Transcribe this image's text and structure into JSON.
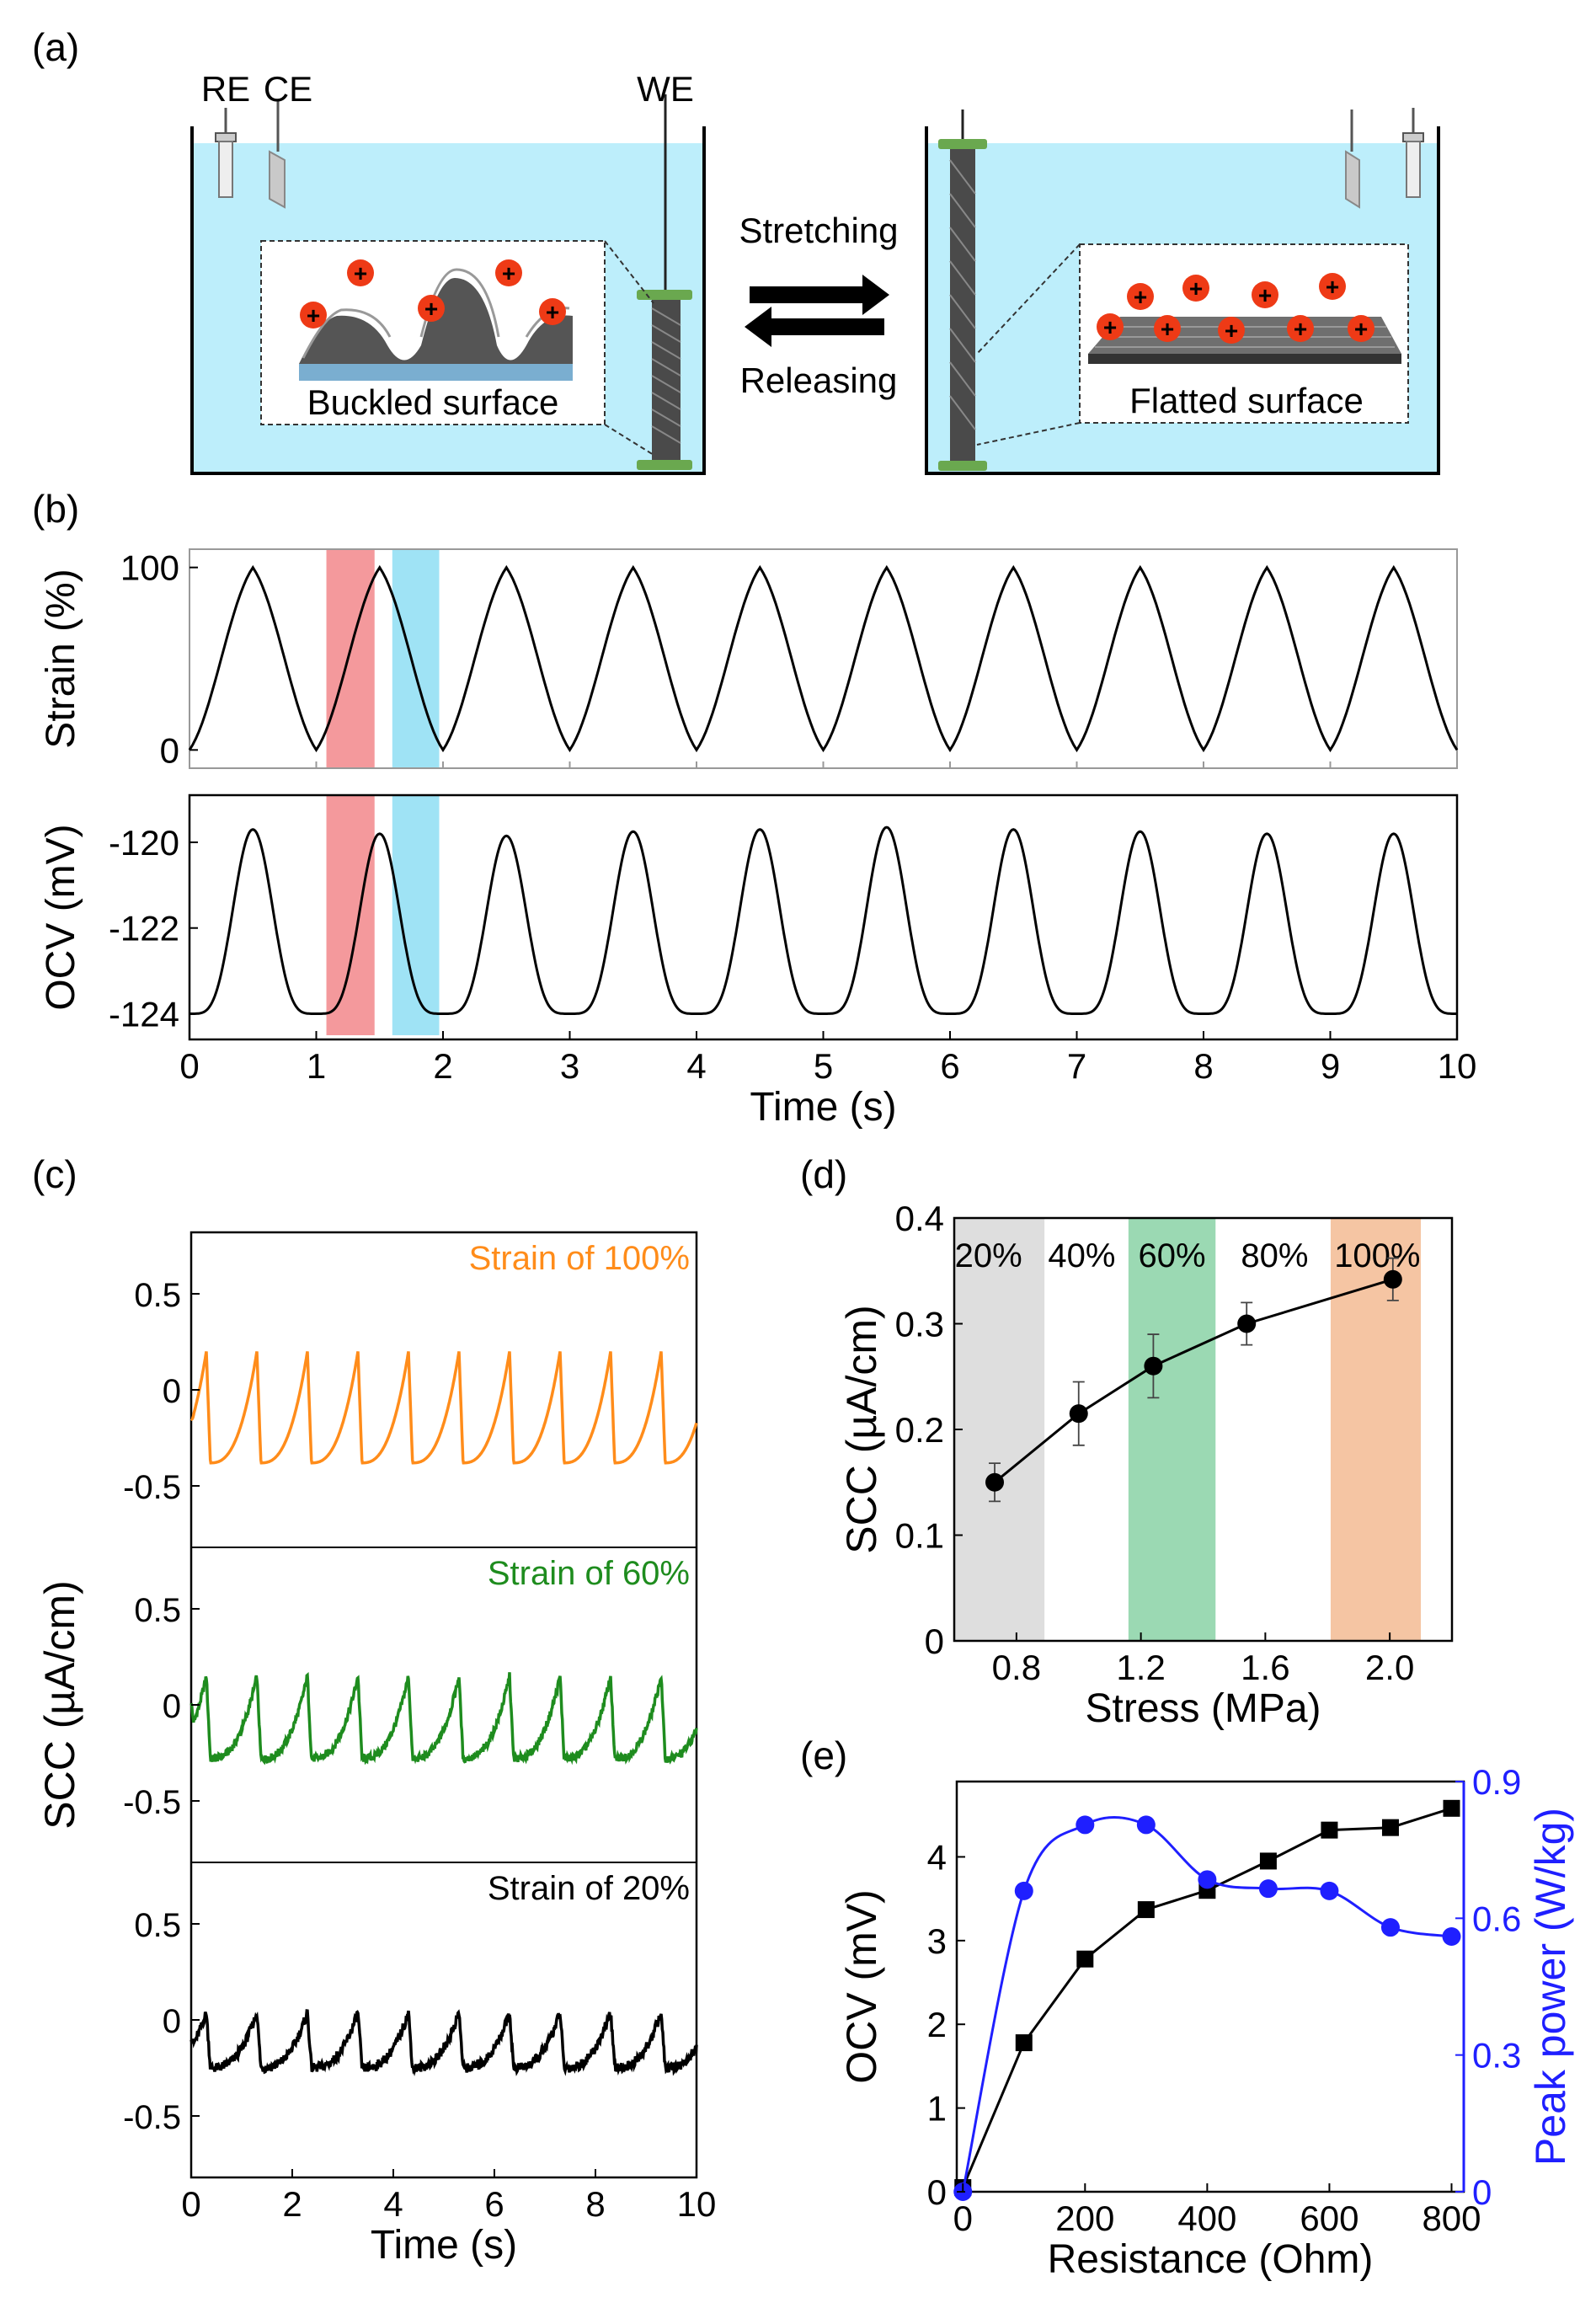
{
  "panel_labels": {
    "a": "(a)",
    "b": "(b)",
    "c": "(c)",
    "d": "(d)",
    "e": "(e)"
  },
  "schematic": {
    "electrodes": {
      "re": "RE",
      "ce": "CE",
      "we": "WE"
    },
    "arrows": {
      "stretch": "Stretching",
      "release": "Releasing"
    },
    "left_inset": "Buckled surface",
    "right_inset": "Flatted surface",
    "charge_symbol": "+",
    "colors": {
      "water": "#bdeefb",
      "yarn": "#4a4a4a",
      "cap": "#6aa84f",
      "charge": "#ee3a16"
    }
  },
  "colors": {
    "axis": "#000000",
    "red_band": "#f4999c",
    "blue_band": "#9fe3f5",
    "c100": "#ff8c1a",
    "c60": "#1e8c1e",
    "c20": "#000000",
    "band20": "#dedede",
    "band60": "#9bd9b3",
    "band100": "#f5c5a3",
    "ocv_e": "#000000",
    "power_e": "#1f1fff"
  },
  "chart_data": [
    {
      "id": "b-strain",
      "type": "line",
      "ylabel": "Strain (%)",
      "ylim": [
        -10,
        110
      ],
      "yticks": [
        0,
        100
      ],
      "xlim": [
        0,
        10
      ],
      "x": [
        0,
        0.5,
        1,
        1.5,
        2,
        2.5,
        3,
        3.5,
        4,
        4.5,
        5,
        5.5,
        6,
        6.5,
        7,
        7.5,
        8,
        8.5,
        9,
        9.5,
        10
      ],
      "y": [
        0,
        100,
        0,
        100,
        0,
        100,
        0,
        100,
        0,
        100,
        0,
        100,
        0,
        100,
        0,
        100,
        0,
        100,
        0,
        100,
        0
      ],
      "highlight_bands": [
        {
          "from": 1.08,
          "to": 1.46,
          "color": "red"
        },
        {
          "from": 1.6,
          "to": 1.97,
          "color": "blue"
        }
      ]
    },
    {
      "id": "b-ocv",
      "type": "line",
      "ylabel": "OCV (mV)",
      "xlabel": "Time (s)",
      "xlim": [
        0,
        10
      ],
      "xticks": [
        0,
        1,
        2,
        3,
        4,
        5,
        6,
        7,
        8,
        9,
        10
      ],
      "ylim": [
        -124.6,
        -118.9
      ],
      "yticks": [
        -120,
        -122,
        -124
      ],
      "ytick_labels": [
        "-120",
        "-122",
        "-124"
      ],
      "baseline": -124.0,
      "period": 1.0,
      "peak_times": [
        0.5,
        1.5,
        2.5,
        3.5,
        4.5,
        5.5,
        6.5,
        7.5,
        8.5,
        9.5
      ],
      "peak_values": [
        -119.7,
        -119.8,
        -119.85,
        -119.75,
        -119.7,
        -119.65,
        -119.7,
        -119.75,
        -119.8,
        -119.8
      ],
      "highlight_bands": [
        {
          "from": 1.08,
          "to": 1.46,
          "color": "red"
        },
        {
          "from": 1.6,
          "to": 1.97,
          "color": "blue"
        }
      ]
    },
    {
      "id": "c-scc",
      "type": "line",
      "ylabel": "SCC (µA/cm)",
      "xlabel": "Time (s)",
      "xlim": [
        0,
        10
      ],
      "xticks": [
        0,
        2,
        4,
        6,
        8,
        10
      ],
      "ylim": [
        -0.82,
        0.82
      ],
      "yticks": [
        0.5,
        0,
        -0.5
      ],
      "ytick_labels": [
        "0.5",
        "0",
        "-0.5"
      ],
      "series": [
        {
          "name": "Strain of 100%",
          "cycles": 10,
          "peak": 0.2,
          "trough": -0.38,
          "start": -0.15,
          "noise": 0.0
        },
        {
          "name": "Strain of 60%",
          "cycles": 10,
          "peak": 0.15,
          "trough": -0.28,
          "start": 0.02,
          "noise": 0.02
        },
        {
          "name": "Strain of 20%",
          "cycles": 10,
          "peak": 0.04,
          "trough": -0.25,
          "start": -0.08,
          "noise": 0.025
        }
      ]
    },
    {
      "id": "d-scc-stress",
      "type": "scatter",
      "xlabel": "Stress (MPa)",
      "ylabel": "SCC (µA/cm)",
      "xlim": [
        0.6,
        2.2
      ],
      "ylim": [
        0,
        0.4
      ],
      "xticks": [
        0.8,
        1.2,
        1.6,
        2.0
      ],
      "xtick_labels": [
        "0.8",
        "1.2",
        "1.6",
        "2.0"
      ],
      "yticks": [
        0,
        0.1,
        0.2,
        0.3,
        0.4
      ],
      "ytick_labels": [
        "0",
        "0.1",
        "0.2",
        "0.3",
        "0.4"
      ],
      "x": [
        0.73,
        1.0,
        1.24,
        1.54,
        2.01
      ],
      "y": [
        0.15,
        0.215,
        0.26,
        0.3,
        0.342
      ],
      "err": [
        0.018,
        0.03,
        0.03,
        0.02,
        0.02
      ],
      "bands": [
        {
          "from": 0.6,
          "to": 0.89,
          "color": "band20"
        },
        {
          "from": 1.16,
          "to": 1.44,
          "color": "band60"
        },
        {
          "from": 1.81,
          "to": 2.1,
          "color": "band100"
        }
      ],
      "band_labels": [
        {
          "text": "20%",
          "x": 0.71
        },
        {
          "text": "40%",
          "x": 1.01
        },
        {
          "text": "60%",
          "x": 1.3
        },
        {
          "text": "80%",
          "x": 1.63
        },
        {
          "text": "100%",
          "x": 1.96
        }
      ]
    },
    {
      "id": "e-ocv-power",
      "type": "line",
      "xlabel": "Resistance (Ohm)",
      "ylabel": "OCV (mV)",
      "y2label": "Peak power (W/kg)",
      "xlim": [
        -10,
        820
      ],
      "xticks": [
        0,
        200,
        400,
        600,
        800
      ],
      "ylim": [
        0,
        4.9
      ],
      "yticks": [
        0,
        1,
        2,
        3,
        4
      ],
      "y2lim": [
        0,
        0.9
      ],
      "y2ticks": [
        0,
        0.3,
        0.6,
        0.9
      ],
      "y2tick_labels": [
        "0",
        "0.3",
        "0.6",
        "0.9"
      ],
      "x": [
        0,
        100,
        200,
        300,
        400,
        500,
        600,
        700,
        800
      ],
      "series": [
        {
          "name": "OCV",
          "axis": "left",
          "marker": "square",
          "values": [
            0.05,
            1.78,
            2.78,
            3.37,
            3.6,
            3.95,
            4.32,
            4.35,
            4.58
          ]
        },
        {
          "name": "Peak power",
          "axis": "right",
          "marker": "circle",
          "values": [
            0.0,
            0.66,
            0.805,
            0.805,
            0.685,
            0.665,
            0.66,
            0.58,
            0.56
          ]
        }
      ]
    }
  ]
}
